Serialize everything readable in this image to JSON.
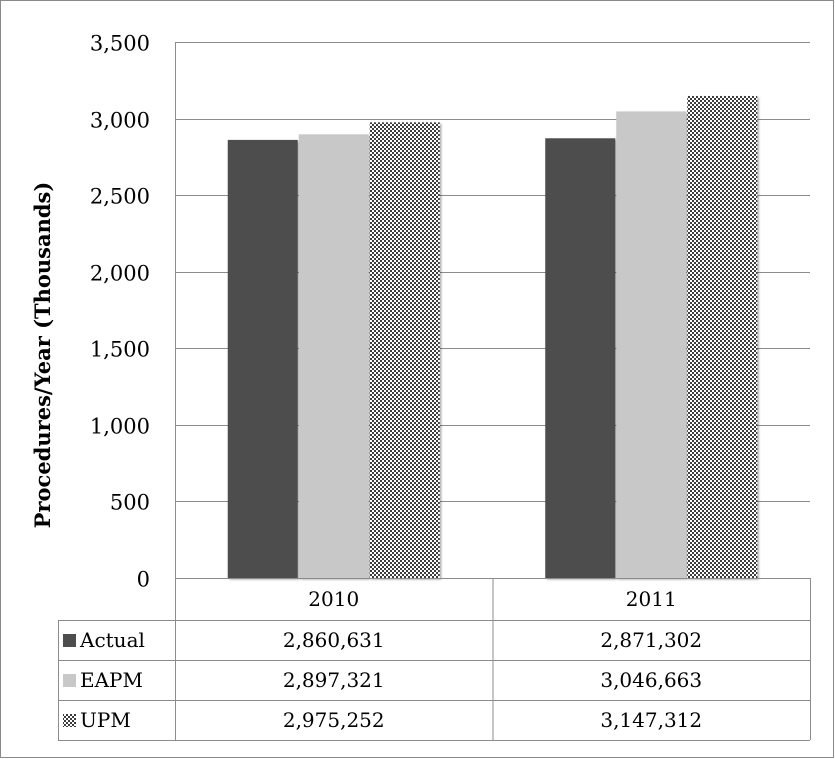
{
  "chart_data": {
    "type": "bar",
    "title": "",
    "xlabel": "",
    "ylabel": "Procedures/Year (Thousands)",
    "ylim": [
      0,
      3500
    ],
    "yticks": [
      0,
      500,
      1000,
      1500,
      2000,
      2500,
      3000,
      3500
    ],
    "ytick_labels": [
      "0",
      "500",
      "1,000",
      "1,500",
      "2,000",
      "2,500",
      "3,000",
      "3,500"
    ],
    "grid": true,
    "legend": "data-table-below",
    "categories": [
      "2010",
      "2011"
    ],
    "series": [
      {
        "name": "Actual",
        "values": [
          2860.631,
          2871.302
        ],
        "table_values": [
          "2,860,631",
          "2,871,302"
        ],
        "color": "#4d4d4d",
        "pattern": "solid"
      },
      {
        "name": "EAPM",
        "values": [
          2897.321,
          3046.663
        ],
        "table_values": [
          "2,897,321",
          "3,046,663"
        ],
        "color": "#c8c8c8",
        "pattern": "solid"
      },
      {
        "name": "UPM",
        "values": [
          2975.252,
          3147.312
        ],
        "table_values": [
          "2,975,252",
          "3,147,312"
        ],
        "color": "#4a4a4a",
        "pattern": "checker"
      }
    ]
  }
}
